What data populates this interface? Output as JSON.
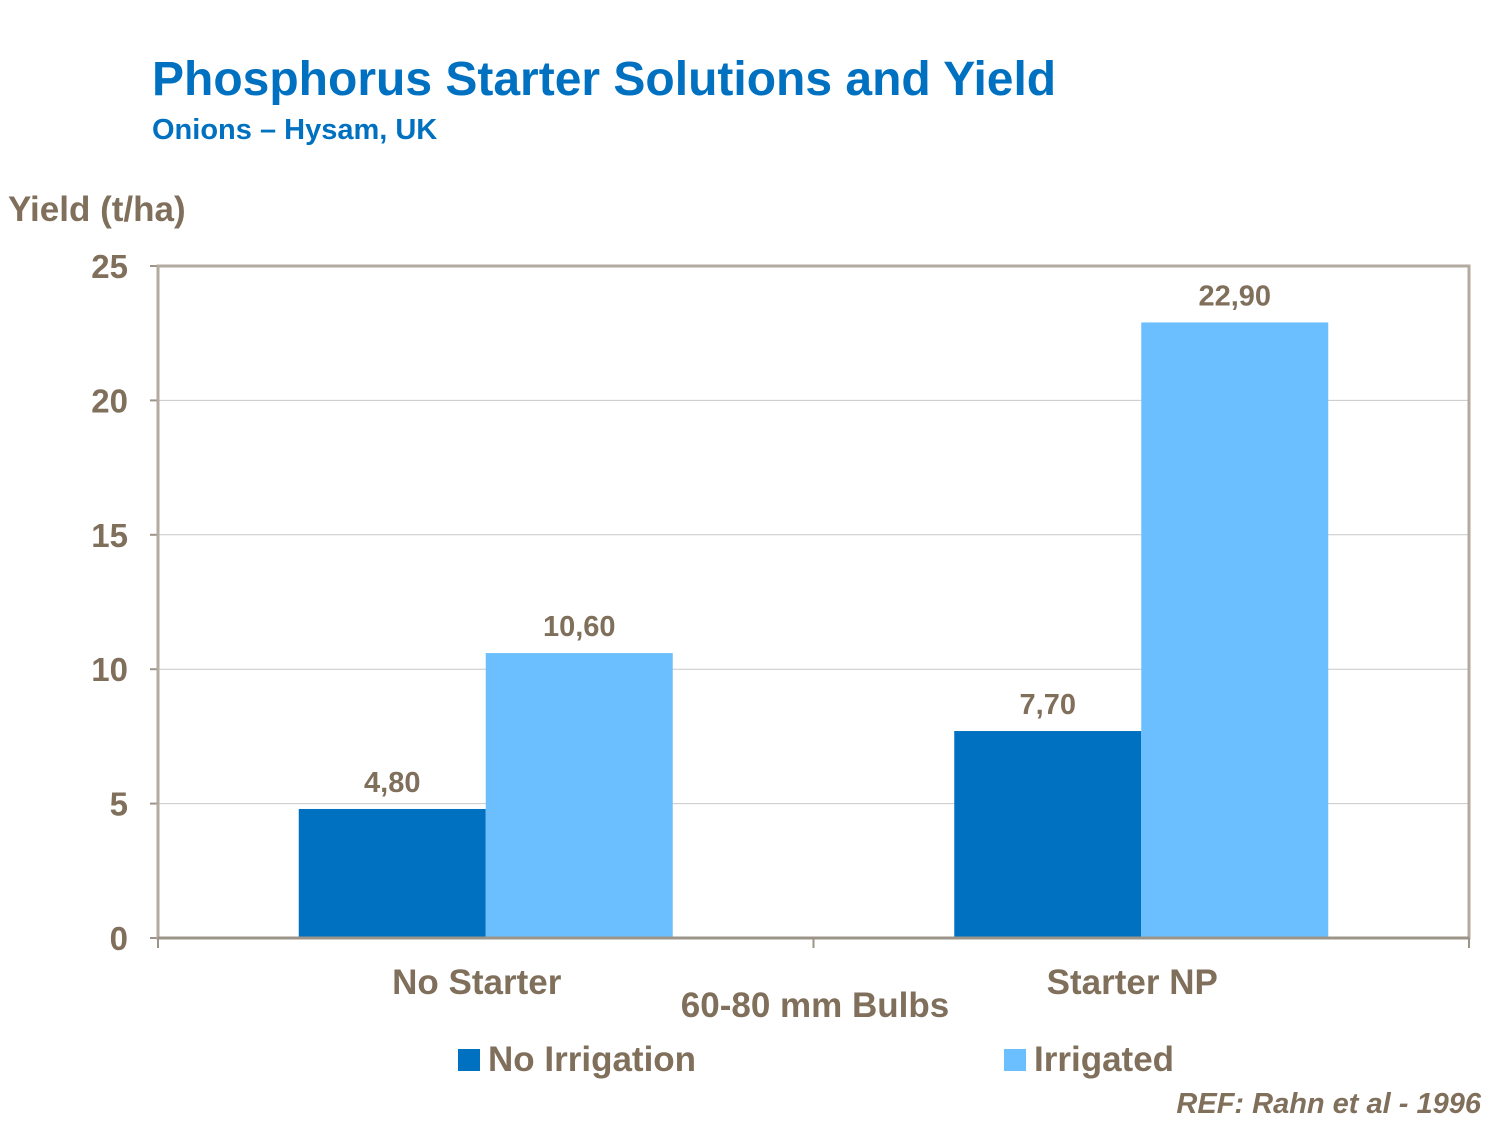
{
  "colors": {
    "text": "#7f6f5b",
    "title": "#0070c0"
  },
  "chart_data": {
    "type": "bar",
    "title": "Phosphorus Starter Solutions and Yield",
    "subtitle": "Onions – Hysam, UK",
    "ylabel": "Yield (t/ha)",
    "xlabel": "60-80 mm Bulbs",
    "ylim": [
      0,
      25
    ],
    "yticks": [
      "0",
      "5",
      "10",
      "15",
      "20",
      "25"
    ],
    "grid": true,
    "legend": "bottom",
    "categories": [
      "No Starter",
      "Starter NP"
    ],
    "series": [
      {
        "name": "No Irrigation",
        "color": "#0070c0",
        "values": [
          4.8,
          7.7
        ],
        "labels": [
          "4,80",
          "7,70"
        ]
      },
      {
        "name": "Irrigated",
        "color": "#6bbfff",
        "values": [
          10.6,
          22.9
        ],
        "labels": [
          "10,60",
          "22,90"
        ]
      }
    ]
  },
  "reference": {
    "prefix": "REF",
    "text": ": Rahn et al -  1996"
  }
}
